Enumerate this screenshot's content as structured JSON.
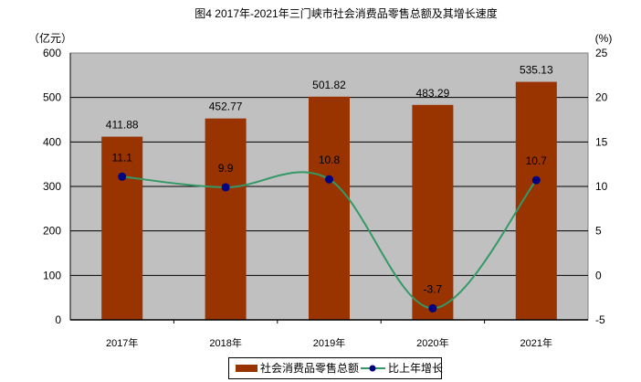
{
  "chart_data": {
    "type": "bar+line",
    "title": "图4  2017年-2021年三门峡市社会消费品零售总额及其增长速度",
    "categories": [
      "2017年",
      "2018年",
      "2019年",
      "2020年",
      "2021年"
    ],
    "series": [
      {
        "name": "社会消费品零售总额",
        "type": "bar",
        "axis": "left",
        "color": "#993300",
        "values": [
          411.88,
          452.77,
          501.82,
          483.29,
          535.13
        ],
        "labels": [
          "411.88",
          "452.77",
          "501.82",
          "483.29",
          "535.13"
        ]
      },
      {
        "name": "比上年增长",
        "type": "line",
        "axis": "right",
        "color": "#339966",
        "marker_color": "#000080",
        "values": [
          11.1,
          9.9,
          10.8,
          -3.7,
          10.7
        ],
        "labels": [
          "11.1",
          "9.9",
          "10.8",
          "-3.7",
          "10.7"
        ]
      }
    ],
    "left_axis": {
      "label": "（亿元）",
      "min": 0,
      "max": 600,
      "ticks": [
        "0",
        "100",
        "200",
        "300",
        "400",
        "500",
        "600"
      ]
    },
    "right_axis": {
      "label": "(%)",
      "min": -5,
      "max": 25,
      "ticks": [
        "-5",
        "0",
        "5",
        "10",
        "15",
        "20",
        "25"
      ]
    },
    "grid": true,
    "plot_background": "#c0c0c0",
    "legend_position": "bottom"
  }
}
